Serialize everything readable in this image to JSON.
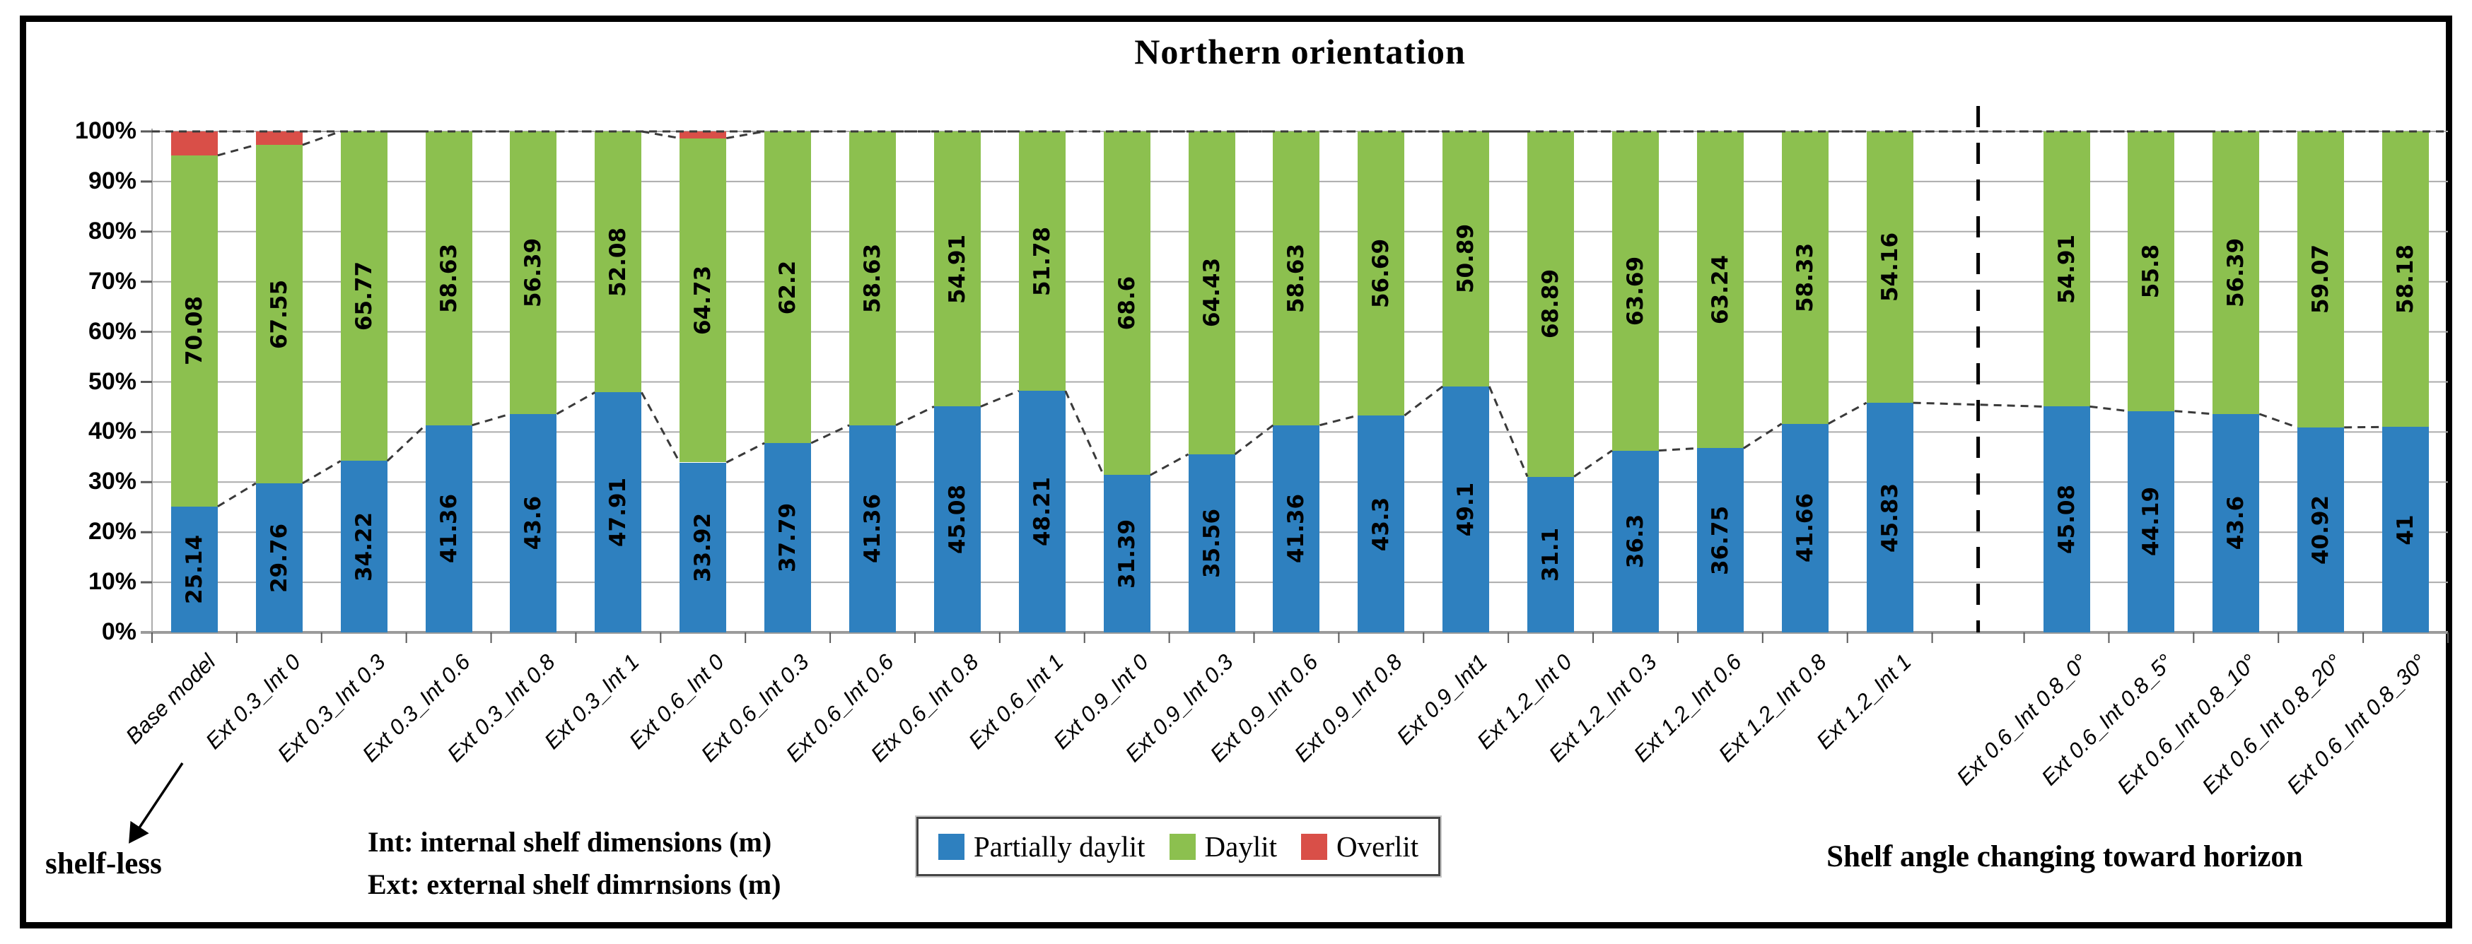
{
  "figure": {
    "title": "Northern orientation",
    "annotations": {
      "shelf_less": "shelf-less",
      "note_line1": "Int: internal shelf dimensions (m)",
      "note_line2": "Ext: external shelf dimrnsions (m)",
      "right_note": "Shelf angle changing toward horizon"
    },
    "legend": [
      {
        "label": "Partially daylit",
        "color": "#2E80BF"
      },
      {
        "label": "Daylit",
        "color": "#8CC04F"
      },
      {
        "label": "Overlit",
        "color": "#D94F48"
      }
    ]
  },
  "chart_data": {
    "type": "bar",
    "stacked": true,
    "percent_stacked": true,
    "title": "Northern orientation",
    "xlabel": "",
    "ylabel": "",
    "ylim": [
      0,
      100
    ],
    "grid": true,
    "legend_position": "bottom",
    "y_ticks": [
      "0%",
      "10%",
      "20%",
      "30%",
      "40%",
      "50%",
      "60%",
      "70%",
      "80%",
      "90%",
      "100%"
    ],
    "categories": [
      "Base model",
      "Ext 0.3_Int 0",
      "Ext 0.3_Int 0.3",
      "Ext 0.3_Int 0.6",
      "Ext 0.3_Int 0.8",
      "Ext 0.3_Int 1",
      "Ext 0.6_Int 0",
      "Ext 0.6_Int 0.3",
      "Ext 0.6_Int 0.6",
      "Etx 0.6_Int 0.8",
      "Ext 0.6_Int 1",
      "Ext 0.9_Int 0",
      "Ext 0.9_Int 0.3",
      "Ext 0.9_Int 0.6",
      "Ext 0.9_Int 0.8",
      "Ext 0.9_Int1",
      "Ext 1.2_Int 0",
      "Ext 1.2_Int 0.3",
      "Ext 1.2_Int 0.6",
      "Ext 1.2_Int 0.8",
      "Ext 1.2_Int 1",
      "Ext 0.6_Int 0.8_0°",
      "Ext 0.6_Int 0.8_5°",
      "Ext 0.6_Int 0.8_10°",
      "Ext 0.6_Int 0.8_20°",
      "Ext 0.6_Int 0.8_30°"
    ],
    "series": [
      {
        "name": "Partially daylit",
        "color": "#2E80BF",
        "labels_shown": true,
        "values": [
          25.14,
          29.76,
          34.22,
          41.36,
          43.6,
          47.91,
          33.92,
          37.79,
          41.36,
          45.08,
          48.21,
          31.39,
          35.56,
          41.36,
          43.3,
          49.1,
          31.1,
          36.3,
          36.75,
          41.66,
          45.83,
          45.08,
          44.19,
          43.6,
          40.92,
          41
        ]
      },
      {
        "name": "Daylit",
        "color": "#8CC04F",
        "labels_shown": true,
        "values": [
          70.08,
          67.55,
          65.77,
          58.63,
          56.39,
          52.08,
          64.73,
          62.2,
          58.63,
          54.91,
          51.78,
          68.6,
          64.43,
          58.63,
          56.69,
          50.89,
          68.89,
          63.69,
          63.24,
          58.33,
          54.16,
          54.91,
          55.8,
          56.39,
          59.07,
          58.18
        ]
      },
      {
        "name": "Overlit",
        "color": "#D94F48",
        "labels_shown": false,
        "values": [
          4.78,
          2.69,
          0,
          0,
          0,
          0,
          1.35,
          0,
          0,
          0,
          0,
          0,
          0,
          0,
          0,
          0,
          0,
          0,
          0,
          0,
          0,
          0,
          0,
          0,
          0,
          0
        ]
      }
    ],
    "divider_after_category": "Ext 1.2_Int 1",
    "divider_after_index": 20,
    "series_lines": "dashed connectors across gaps at tops of Partially-daylit and Daylit segments, plus dashed line at 100%"
  }
}
